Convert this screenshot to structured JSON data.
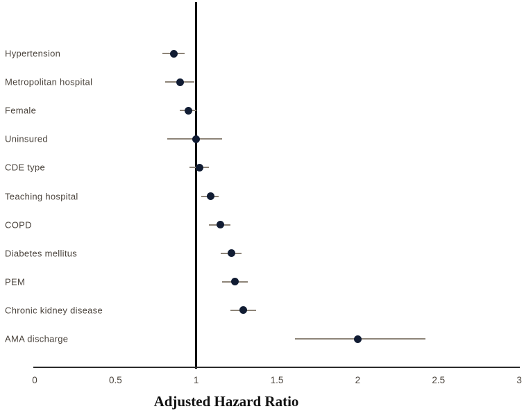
{
  "chart_data": {
    "type": "scatter",
    "subtype": "forest-plot",
    "title": "",
    "xlabel": "Adjusted Hazard Ratio",
    "ylabel": "",
    "xlim": [
      0,
      3
    ],
    "x_ticks": [
      {
        "value": 0,
        "label": "0"
      },
      {
        "value": 0.5,
        "label": "0.5"
      },
      {
        "value": 1,
        "label": "1"
      },
      {
        "value": 1.5,
        "label": "1.5"
      },
      {
        "value": 2,
        "label": "2"
      },
      {
        "value": 2.5,
        "label": "2.5"
      },
      {
        "value": 3,
        "label": "3"
      }
    ],
    "reference_line": 1,
    "grid": false,
    "legend": "none",
    "rows": [
      {
        "label": "Hypertension",
        "estimate": 0.86,
        "ci_low": 0.79,
        "ci_high": 0.93
      },
      {
        "label": "Metropolitan hospital",
        "estimate": 0.9,
        "ci_low": 0.81,
        "ci_high": 0.99
      },
      {
        "label": "Female",
        "estimate": 0.95,
        "ci_low": 0.9,
        "ci_high": 1.0
      },
      {
        "label": "Uninsured",
        "estimate": 1.0,
        "ci_low": 0.82,
        "ci_high": 1.16
      },
      {
        "label": "CDE type",
        "estimate": 1.02,
        "ci_low": 0.96,
        "ci_high": 1.08
      },
      {
        "label": "Teaching hospital",
        "estimate": 1.09,
        "ci_low": 1.03,
        "ci_high": 1.14
      },
      {
        "label": "COPD",
        "estimate": 1.15,
        "ci_low": 1.08,
        "ci_high": 1.21
      },
      {
        "label": "Diabetes mellitus",
        "estimate": 1.22,
        "ci_low": 1.15,
        "ci_high": 1.28
      },
      {
        "label": "PEM",
        "estimate": 1.24,
        "ci_low": 1.16,
        "ci_high": 1.32
      },
      {
        "label": "Chronic kidney disease",
        "estimate": 1.29,
        "ci_low": 1.21,
        "ci_high": 1.37
      },
      {
        "label": "AMA discharge",
        "estimate": 2.0,
        "ci_low": 1.61,
        "ci_high": 2.42
      }
    ],
    "colors": {
      "marker": "#111c33",
      "ci_line": "#8d8478",
      "reference_line": "#0c0c0c",
      "axis_line": "#2b2b2b",
      "label_text": "#4b443d",
      "title_text": "#111111",
      "background": "#ffffff"
    }
  }
}
